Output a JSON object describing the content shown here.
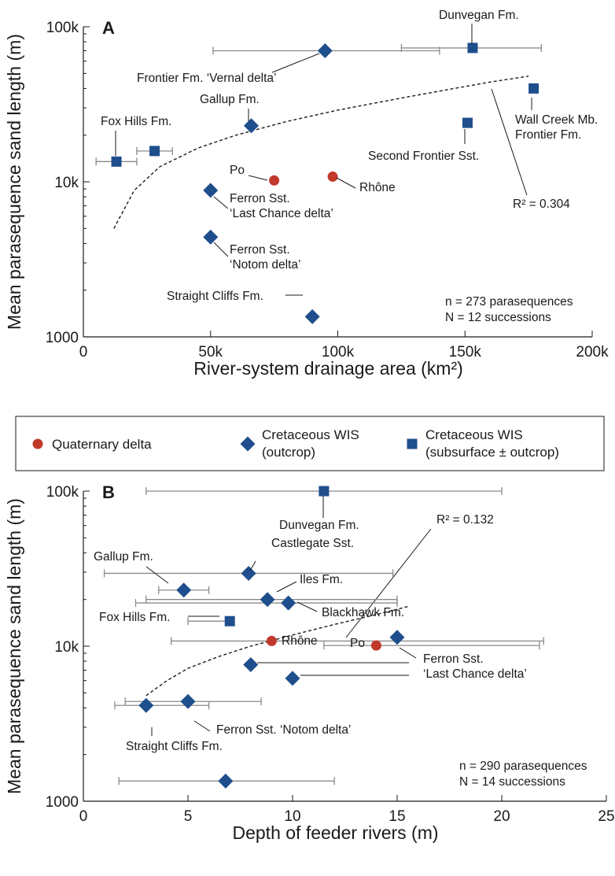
{
  "colors": {
    "quaternary": "#c0392b",
    "outcrop": "#1f4e8c",
    "subsurface": "#1f4e8c",
    "error_bar": "#8a8a8a"
  },
  "legend": {
    "items": [
      {
        "key": "quaternary",
        "marker": "circle",
        "lines": [
          "Quaternary delta"
        ]
      },
      {
        "key": "outcrop",
        "marker": "diamond",
        "lines": [
          "Cretaceous WIS",
          "(outcrop)"
        ]
      },
      {
        "key": "subsurface",
        "marker": "square",
        "lines": [
          "Cretaceous WIS",
          "(subsurface ± outcrop)"
        ]
      }
    ]
  },
  "chart_data": [
    {
      "panel": "A",
      "type": "scatter",
      "xlabel": "River-system drainage area (km²)",
      "ylabel": "Mean parasequence sand length (m)",
      "xlim": [
        0,
        200000
      ],
      "ylim": [
        1000,
        100000
      ],
      "yscale": "log",
      "xticks": [
        {
          "v": 0,
          "label": "0"
        },
        {
          "v": 50000,
          "label": "50k"
        },
        {
          "v": 100000,
          "label": "100k"
        },
        {
          "v": 150000,
          "label": "150k"
        },
        {
          "v": 200000,
          "label": "200k"
        }
      ],
      "yticks": [
        {
          "v": 1000,
          "label": "1000"
        },
        {
          "v": 10000,
          "label": "10k"
        },
        {
          "v": 100000,
          "label": "100k"
        }
      ],
      "stats": [
        "n = 273 parasequences",
        "N = 12 successions"
      ],
      "r2_label": "R² = 0.304",
      "trendline": {
        "x": [
          12000,
          20000,
          30000,
          45000,
          60000,
          80000,
          100000,
          120000,
          140000,
          160000,
          175000
        ],
        "y": [
          5000,
          8800,
          12500,
          16500,
          20000,
          24500,
          29000,
          33500,
          38500,
          44000,
          48000
        ]
      },
      "points": [
        {
          "name": "Po",
          "group": "quaternary",
          "x": 75000,
          "y": 10200,
          "xerr": null
        },
        {
          "name": "Rhône",
          "group": "quaternary",
          "x": 98000,
          "y": 10800,
          "xerr": null
        },
        {
          "name": "Fox Hills Fm.",
          "group": "subsurface",
          "x": 13000,
          "y": 13500,
          "xerr": [
            5000,
            21000
          ]
        },
        {
          "name": "Fox Hills Fm. (2)",
          "group": "subsurface",
          "x": 28000,
          "y": 15800,
          "xerr": [
            21000,
            35000
          ]
        },
        {
          "name": "Gallup Fm.",
          "group": "outcrop",
          "x": 66000,
          "y": 23000,
          "xerr": null
        },
        {
          "name": "Frontier Fm. 'Vernal delta'",
          "group": "outcrop",
          "x": 95000,
          "y": 70000,
          "xerr": [
            51000,
            140000
          ]
        },
        {
          "name": "Dunvegan Fm.",
          "group": "subsurface",
          "x": 153000,
          "y": 73000,
          "xerr": [
            125000,
            180000
          ]
        },
        {
          "name": "Wall Creek Mb. Frontier Fm.",
          "group": "subsurface",
          "x": 177000,
          "y": 40000,
          "xerr": null
        },
        {
          "name": "Second Frontier Sst.",
          "group": "subsurface",
          "x": 151000,
          "y": 24000,
          "xerr": null
        },
        {
          "name": "Ferron Sst. 'Last Chance delta'",
          "group": "outcrop",
          "x": 50000,
          "y": 8800,
          "xerr": null
        },
        {
          "name": "Ferron Sst. 'Notom delta'",
          "group": "outcrop",
          "x": 50000,
          "y": 4400,
          "xerr": null
        },
        {
          "name": "Straight Cliffs Fm.",
          "group": "outcrop",
          "x": 90000,
          "y": 1350,
          "xerr": null
        }
      ],
      "labels": [
        {
          "lines": [
            "Fox Hills Fm."
          ]
        },
        {
          "lines": [
            "Gallup Fm."
          ]
        },
        {
          "lines": [
            "Frontier Fm. ‘Vernal delta’"
          ]
        },
        {
          "lines": [
            "Dunvegan Fm."
          ]
        },
        {
          "lines": [
            "Wall Creek Mb.",
            "Frontier Fm."
          ]
        },
        {
          "lines": [
            "Second Frontier Sst."
          ]
        },
        {
          "lines": [
            "Po"
          ]
        },
        {
          "lines": [
            "Rhône"
          ]
        },
        {
          "lines": [
            "Ferron Sst.",
            "‘Last Chance delta’"
          ]
        },
        {
          "lines": [
            "Ferron Sst.",
            "‘Notom delta’"
          ]
        },
        {
          "lines": [
            "Straight Cliffs Fm."
          ]
        }
      ]
    },
    {
      "panel": "B",
      "type": "scatter",
      "xlabel": "Depth of feeder rivers (m)",
      "ylabel": "Mean parasequence sand length (m)",
      "xlim": [
        0,
        25
      ],
      "ylim": [
        1000,
        100000
      ],
      "yscale": "log",
      "xticks": [
        {
          "v": 0,
          "label": "0"
        },
        {
          "v": 5,
          "label": "5"
        },
        {
          "v": 10,
          "label": "10"
        },
        {
          "v": 15,
          "label": "15"
        },
        {
          "v": 20,
          "label": "20"
        },
        {
          "v": 25,
          "label": "25"
        }
      ],
      "yticks": [
        {
          "v": 1000,
          "label": "1000"
        },
        {
          "v": 10000,
          "label": "10k"
        },
        {
          "v": 100000,
          "label": "100k"
        }
      ],
      "stats": [
        "n = 290 parasequences",
        "N = 14 successions"
      ],
      "r2_label": "R² = 0.132",
      "trendline": {
        "x": [
          3,
          4,
          5,
          6.5,
          8,
          10,
          12,
          14,
          15.5
        ],
        "y": [
          4800,
          6000,
          7200,
          8600,
          10000,
          11800,
          13800,
          16000,
          18000
        ]
      },
      "points": [
        {
          "name": "Dunvegan Fm.",
          "group": "subsurface",
          "x": 11.5,
          "y": 100000,
          "xerr": [
            3,
            20
          ]
        },
        {
          "name": "Castlegate Sst.",
          "group": "outcrop",
          "x": 7.9,
          "y": 29500,
          "xerr": [
            1,
            14.8
          ]
        },
        {
          "name": "Gallup Fm.",
          "group": "outcrop",
          "x": 4.8,
          "y": 23000,
          "xerr": [
            3.6,
            6
          ]
        },
        {
          "name": "Iles Fm.",
          "group": "outcrop",
          "x": 8.8,
          "y": 20000,
          "xerr": [
            3,
            15
          ]
        },
        {
          "name": "Blackhawk Fm.",
          "group": "outcrop",
          "x": 9.8,
          "y": 19000,
          "xerr": [
            2.5,
            15
          ]
        },
        {
          "name": "Fox Hills Fm.",
          "group": "subsurface",
          "x": 7,
          "y": 14500,
          "xerr": [
            5,
            7
          ]
        },
        {
          "name": "Rhône",
          "group": "quaternary",
          "x": 9,
          "y": 10800,
          "xerr": [
            4.2,
            22
          ]
        },
        {
          "name": "Po",
          "group": "quaternary",
          "x": 14,
          "y": 10100,
          "xerr": [
            11.5,
            21.8
          ]
        },
        {
          "name": "Ferron Sst. 'Last Chance delta' (1)",
          "group": "outcrop",
          "x": 15,
          "y": 11400,
          "xerr": null
        },
        {
          "name": "Ferron Sst. 'Last Chance delta' (2)",
          "group": "outcrop",
          "x": 8,
          "y": 7600,
          "xerr": null
        },
        {
          "name": "Ferron Sst. 'Last Chance delta' (3)",
          "group": "outcrop",
          "x": 10,
          "y": 6200,
          "xerr": null
        },
        {
          "name": "Ferron Sst. 'Notom delta'",
          "group": "outcrop",
          "x": 5,
          "y": 4400,
          "xerr": [
            2,
            8.5
          ]
        },
        {
          "name": "Straight Cliffs Fm.",
          "group": "outcrop",
          "x": 3,
          "y": 4150,
          "xerr": [
            1.5,
            6
          ]
        },
        {
          "name": "Unlabeled outcrop",
          "group": "outcrop",
          "x": 6.8,
          "y": 1350,
          "xerr": [
            1.7,
            12
          ]
        }
      ],
      "labels": [
        {
          "lines": [
            "Dunvegan Fm."
          ]
        },
        {
          "lines": [
            "Castlegate Sst."
          ]
        },
        {
          "lines": [
            "Gallup Fm."
          ]
        },
        {
          "lines": [
            "Iles Fm."
          ]
        },
        {
          "lines": [
            "Blackhawk Fm."
          ]
        },
        {
          "lines": [
            "Fox Hills Fm."
          ]
        },
        {
          "lines": [
            "Rhône"
          ]
        },
        {
          "lines": [
            "Po"
          ]
        },
        {
          "lines": [
            "Ferron Sst.",
            "‘Last Chance delta’"
          ]
        },
        {
          "lines": [
            "Ferron Sst. ‘Notom delta’"
          ]
        },
        {
          "lines": [
            "Straight Cliffs Fm."
          ]
        }
      ]
    }
  ]
}
